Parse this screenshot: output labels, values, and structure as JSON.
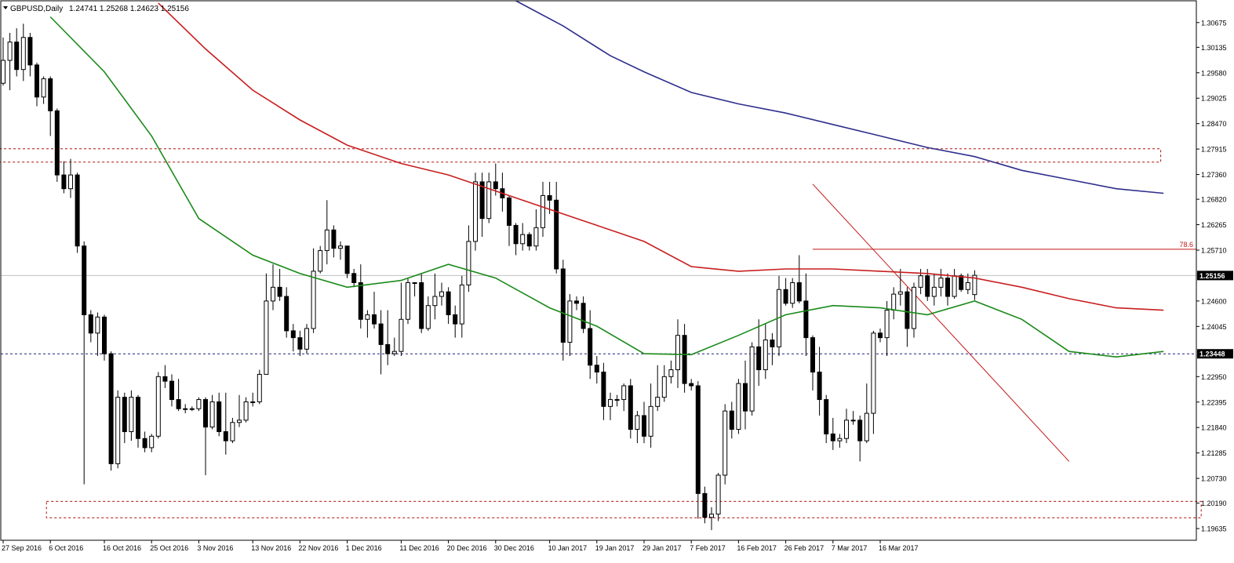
{
  "header": {
    "symbol_label": "GBPUSD,Daily",
    "ohlc_label": "1.24741 1.25268 1.24623 1.25156"
  },
  "colors": {
    "background": "#ffffff",
    "candle_outline": "#000000",
    "bull_body": "#ffffff",
    "bear_body": "#000000",
    "ma_fast": "#1a8a1a",
    "ma_mid": "#c81e1e",
    "ma_slow": "#2e2e8c",
    "zone": "#b01010",
    "support_line": "#1f1f7a",
    "fib_line": "#c01818",
    "current_price_line": "#c0c0c0",
    "price_tag_bg": "#000000",
    "price_tag_text": "#ffffff"
  },
  "chart_data": {
    "type": "candlestick",
    "symbol": "GBPUSD",
    "timeframe": "Daily",
    "ylim": [
      1.1938,
      1.3115
    ],
    "y_ticks": [
      "1.30675",
      "1.30135",
      "1.29580",
      "1.29025",
      "1.28470",
      "1.27915",
      "1.27360",
      "1.26820",
      "1.26265",
      "1.25710",
      "1.24600",
      "1.24045",
      "1.22950",
      "1.22395",
      "1.21840",
      "1.21285",
      "1.20730",
      "1.20190",
      "1.19635"
    ],
    "x_labels": [
      {
        "bar": 0,
        "label": "27 Sep 2016"
      },
      {
        "bar": 7,
        "label": "6 Oct 2016"
      },
      {
        "bar": 15,
        "label": "16 Oct 2016"
      },
      {
        "bar": 22,
        "label": "25 Oct 2016"
      },
      {
        "bar": 29,
        "label": "3 Nov 2016"
      },
      {
        "bar": 37,
        "label": "13 Nov 2016"
      },
      {
        "bar": 44,
        "label": "22 Nov 2016"
      },
      {
        "bar": 51,
        "label": "1 Dec 2016"
      },
      {
        "bar": 59,
        "label": "11 Dec 2016"
      },
      {
        "bar": 66,
        "label": "20 Dec 2016"
      },
      {
        "bar": 73,
        "label": "30 Dec 2016"
      },
      {
        "bar": 81,
        "label": "10 Jan 2017"
      },
      {
        "bar": 88,
        "label": "19 Jan 2017"
      },
      {
        "bar": 95,
        "label": "29 Jan 2017"
      },
      {
        "bar": 102,
        "label": "7 Feb 2017"
      },
      {
        "bar": 109,
        "label": "16 Feb 2017"
      },
      {
        "bar": 116,
        "label": "26 Feb 2017"
      },
      {
        "bar": 123,
        "label": "7 Mar 2017"
      },
      {
        "bar": 130,
        "label": "16 Mar 2017"
      }
    ],
    "candles": [
      [
        1.2935,
        1.2985,
        1.293,
        1.3035
      ],
      [
        1.2985,
        1.3025,
        1.292,
        1.3045
      ],
      [
        1.3025,
        1.2965,
        1.295,
        1.3055
      ],
      [
        1.2965,
        1.3035,
        1.294,
        1.3065
      ],
      [
        1.3035,
        1.2975,
        1.295,
        1.3045
      ],
      [
        1.2975,
        1.2905,
        1.2885,
        1.298
      ],
      [
        1.2905,
        1.2945,
        1.289,
        1.295
      ],
      [
        1.2945,
        1.2875,
        1.282,
        1.295
      ],
      [
        1.2875,
        1.2735,
        1.272,
        1.288
      ],
      [
        1.2735,
        1.2705,
        1.2695,
        1.2765
      ],
      [
        1.2705,
        1.2735,
        1.2685,
        1.277
      ],
      [
        1.2735,
        1.258,
        1.2565,
        1.274
      ],
      [
        1.258,
        1.243,
        1.206,
        1.259
      ],
      [
        1.243,
        1.239,
        1.237,
        1.244
      ],
      [
        1.239,
        1.2425,
        1.234,
        1.2435
      ],
      [
        1.2425,
        1.2345,
        1.233,
        1.243
      ],
      [
        1.2345,
        1.2105,
        1.209,
        1.235
      ],
      [
        1.2105,
        1.225,
        1.2095,
        1.2265
      ],
      [
        1.225,
        1.2175,
        1.215,
        1.226
      ],
      [
        1.2175,
        1.225,
        1.2155,
        1.2265
      ],
      [
        1.225,
        1.216,
        1.214,
        1.2255
      ],
      [
        1.216,
        1.214,
        1.213,
        1.2175
      ],
      [
        1.214,
        1.2165,
        1.213,
        1.217
      ],
      [
        1.2165,
        1.2295,
        1.216,
        1.2305
      ],
      [
        1.2295,
        1.2285,
        1.227,
        1.232
      ],
      [
        1.2285,
        1.2245,
        1.223,
        1.23
      ],
      [
        1.2245,
        1.2225,
        1.222,
        1.229
      ],
      [
        1.2225,
        1.2225,
        1.2215,
        1.2235
      ],
      [
        1.2225,
        1.2225,
        1.222,
        1.223
      ],
      [
        1.2225,
        1.2245,
        1.222,
        1.225
      ],
      [
        1.2245,
        1.2185,
        1.208,
        1.225
      ],
      [
        1.2185,
        1.224,
        1.218,
        1.2255
      ],
      [
        1.224,
        1.2175,
        1.2165,
        1.226
      ],
      [
        1.2175,
        1.2155,
        1.2125,
        1.226
      ],
      [
        1.2155,
        1.2195,
        1.215,
        1.2205
      ],
      [
        1.2195,
        1.22,
        1.2185,
        1.2255
      ],
      [
        1.22,
        1.224,
        1.2195,
        1.225
      ],
      [
        1.224,
        1.224,
        1.223,
        1.226
      ],
      [
        1.224,
        1.23,
        1.2235,
        1.231
      ],
      [
        1.23,
        1.246,
        1.23,
        1.252
      ],
      [
        1.246,
        1.249,
        1.244,
        1.254
      ],
      [
        1.249,
        1.247,
        1.246,
        1.253
      ],
      [
        1.247,
        1.2395,
        1.238,
        1.249
      ],
      [
        1.2395,
        1.238,
        1.235,
        1.241
      ],
      [
        1.238,
        1.2355,
        1.234,
        1.2395
      ],
      [
        1.2355,
        1.24,
        1.2345,
        1.241
      ],
      [
        1.24,
        1.2525,
        1.239,
        1.2575
      ],
      [
        1.2525,
        1.257,
        1.252,
        1.258
      ],
      [
        1.257,
        1.2615,
        1.254,
        1.268
      ],
      [
        1.2615,
        1.2575,
        1.2555,
        1.2625
      ],
      [
        1.2575,
        1.258,
        1.255,
        1.259
      ],
      [
        1.258,
        1.252,
        1.251,
        1.258
      ],
      [
        1.252,
        1.25,
        1.249,
        1.253
      ],
      [
        1.25,
        1.242,
        1.24,
        1.254
      ],
      [
        1.242,
        1.243,
        1.238,
        1.244
      ],
      [
        1.243,
        1.241,
        1.24,
        1.248
      ],
      [
        1.241,
        1.2365,
        1.23,
        1.244
      ],
      [
        1.2365,
        1.2345,
        1.232,
        1.244
      ],
      [
        1.2345,
        1.235,
        1.234,
        1.238
      ],
      [
        1.235,
        1.242,
        1.234,
        1.25
      ],
      [
        1.242,
        1.25,
        1.241,
        1.251
      ],
      [
        1.25,
        1.25,
        1.247,
        1.25
      ],
      [
        1.25,
        1.24,
        1.239,
        1.252
      ],
      [
        1.24,
        1.245,
        1.2395,
        1.247
      ],
      [
        1.245,
        1.247,
        1.242,
        1.252
      ],
      [
        1.247,
        1.248,
        1.245,
        1.25
      ],
      [
        1.248,
        1.243,
        1.241,
        1.249
      ],
      [
        1.243,
        1.241,
        1.238,
        1.245
      ],
      [
        1.241,
        1.2495,
        1.238,
        1.2515
      ],
      [
        1.2495,
        1.259,
        1.248,
        1.2625
      ],
      [
        1.259,
        1.272,
        1.257,
        1.274
      ],
      [
        1.272,
        1.264,
        1.26,
        1.274
      ],
      [
        1.264,
        1.272,
        1.263,
        1.274
      ],
      [
        1.272,
        1.2705,
        1.269,
        1.276
      ],
      [
        1.2705,
        1.2685,
        1.2655,
        1.274
      ],
      [
        1.2685,
        1.2625,
        1.258,
        1.269
      ],
      [
        1.2625,
        1.2585,
        1.256,
        1.263
      ],
      [
        1.2585,
        1.2605,
        1.257,
        1.263
      ],
      [
        1.2605,
        1.258,
        1.257,
        1.261
      ],
      [
        1.258,
        1.262,
        1.257,
        1.266
      ],
      [
        1.262,
        1.269,
        1.26,
        1.272
      ],
      [
        1.269,
        1.268,
        1.265,
        1.272
      ],
      [
        1.268,
        1.253,
        1.252,
        1.272
      ],
      [
        1.253,
        1.237,
        1.233,
        1.255
      ],
      [
        1.237,
        1.246,
        1.234,
        1.2475
      ],
      [
        1.246,
        1.2455,
        1.244,
        1.247
      ],
      [
        1.2455,
        1.24,
        1.239,
        1.247
      ],
      [
        1.24,
        1.232,
        1.229,
        1.244
      ],
      [
        1.232,
        1.2305,
        1.228,
        1.234
      ],
      [
        1.2305,
        1.223,
        1.22,
        1.2325
      ],
      [
        1.223,
        1.2245,
        1.22,
        1.226
      ],
      [
        1.2245,
        1.2245,
        1.223,
        1.2255
      ],
      [
        1.2245,
        1.2275,
        1.222,
        1.228
      ],
      [
        1.2275,
        1.218,
        1.216,
        1.229
      ],
      [
        1.218,
        1.221,
        1.215,
        1.222
      ],
      [
        1.221,
        1.2165,
        1.215,
        1.224
      ],
      [
        1.2165,
        1.223,
        1.214,
        1.228
      ],
      [
        1.223,
        1.225,
        1.222,
        1.232
      ],
      [
        1.225,
        1.2295,
        1.224,
        1.232
      ],
      [
        1.2295,
        1.231,
        1.228,
        1.233
      ],
      [
        1.231,
        1.2385,
        1.227,
        1.242
      ],
      [
        1.2385,
        1.228,
        1.226,
        1.241
      ],
      [
        1.228,
        1.2275,
        1.2265,
        1.229
      ],
      [
        1.2275,
        1.204,
        1.1985,
        1.2285
      ],
      [
        1.204,
        1.1988,
        1.1975,
        1.2055
      ],
      [
        1.1988,
        1.1995,
        1.196,
        1.201
      ],
      [
        1.1995,
        1.208,
        1.198,
        1.2085
      ],
      [
        1.208,
        1.222,
        1.206,
        1.2235
      ],
      [
        1.222,
        1.218,
        1.216,
        1.224
      ],
      [
        1.218,
        1.228,
        1.217,
        1.229
      ],
      [
        1.228,
        1.222,
        1.218,
        1.233
      ],
      [
        1.222,
        1.236,
        1.221,
        1.237
      ],
      [
        1.236,
        1.231,
        1.2275,
        1.242
      ],
      [
        1.231,
        1.2375,
        1.229,
        1.241
      ],
      [
        1.2375,
        1.236,
        1.232,
        1.239
      ],
      [
        1.236,
        1.2485,
        1.234,
        1.2515
      ],
      [
        1.2485,
        1.2455,
        1.245,
        1.251
      ],
      [
        1.2455,
        1.25,
        1.2445,
        1.251
      ],
      [
        1.25,
        1.246,
        1.2455,
        1.256
      ],
      [
        1.246,
        1.238,
        1.234,
        1.252
      ],
      [
        1.238,
        1.2305,
        1.2265,
        1.2385
      ],
      [
        1.2305,
        1.2245,
        1.221,
        1.236
      ],
      [
        1.2245,
        1.217,
        1.215,
        1.2255
      ],
      [
        1.217,
        1.2155,
        1.2135,
        1.2205
      ],
      [
        1.2155,
        1.216,
        1.214,
        1.217
      ],
      [
        1.216,
        1.22,
        1.215,
        1.2225
      ],
      [
        1.22,
        1.22,
        1.219,
        1.222
      ],
      [
        1.22,
        1.2155,
        1.211,
        1.221
      ],
      [
        1.2155,
        1.2215,
        1.215,
        1.228
      ],
      [
        1.2215,
        1.239,
        1.217,
        1.2395
      ],
      [
        1.239,
        1.238,
        1.237,
        1.24
      ],
      [
        1.238,
        1.244,
        1.234,
        1.246
      ],
      [
        1.244,
        1.2475,
        1.242,
        1.249
      ],
      [
        1.2475,
        1.248,
        1.245,
        1.253
      ],
      [
        1.248,
        1.24,
        1.236,
        1.249
      ],
      [
        1.24,
        1.249,
        1.238,
        1.25
      ],
      [
        1.249,
        1.2515,
        1.2475,
        1.253
      ],
      [
        1.2515,
        1.247,
        1.246,
        1.253
      ],
      [
        1.247,
        1.249,
        1.245,
        1.252
      ],
      [
        1.249,
        1.251,
        1.247,
        1.253
      ],
      [
        1.251,
        1.247,
        1.245,
        1.252
      ],
      [
        1.247,
        1.2515,
        1.2465,
        1.253
      ],
      [
        1.2515,
        1.2485,
        1.248,
        1.252
      ],
      [
        1.2485,
        1.25,
        1.2475,
        1.252
      ],
      [
        1.2474,
        1.2516,
        1.2462,
        1.2527
      ]
    ],
    "moving_averages": [
      {
        "color_key": "ma_fast",
        "points": [
          [
            7,
            1.308
          ],
          [
            15,
            1.296
          ],
          [
            22,
            1.282
          ],
          [
            29,
            1.264
          ],
          [
            37,
            1.256
          ],
          [
            44,
            1.252
          ],
          [
            51,
            1.249
          ],
          [
            59,
            1.2505
          ],
          [
            66,
            1.254
          ],
          [
            73,
            1.251
          ],
          [
            81,
            1.2445
          ],
          [
            88,
            1.2405
          ],
          [
            95,
            1.2345
          ],
          [
            102,
            1.2343
          ],
          [
            109,
            1.2385
          ],
          [
            116,
            1.243
          ],
          [
            123,
            1.245
          ],
          [
            130,
            1.2445
          ],
          [
            137,
            1.243
          ],
          [
            144,
            1.246
          ],
          [
            151,
            1.242
          ],
          [
            158,
            1.235
          ],
          [
            165,
            1.2338
          ],
          [
            172,
            1.235
          ]
        ]
      },
      {
        "color_key": "ma_mid",
        "points": [
          [
            23,
            1.311
          ],
          [
            30,
            1.301
          ],
          [
            37,
            1.292
          ],
          [
            44,
            1.2855
          ],
          [
            51,
            1.28
          ],
          [
            59,
            1.276
          ],
          [
            66,
            1.2735
          ],
          [
            73,
            1.27
          ],
          [
            81,
            1.266
          ],
          [
            88,
            1.2625
          ],
          [
            95,
            1.259
          ],
          [
            102,
            1.2535
          ],
          [
            109,
            1.2525
          ],
          [
            116,
            1.253
          ],
          [
            123,
            1.253
          ],
          [
            130,
            1.2525
          ],
          [
            137,
            1.252
          ],
          [
            144,
            1.251
          ],
          [
            151,
            1.249
          ],
          [
            158,
            1.2465
          ],
          [
            165,
            1.2445
          ],
          [
            172,
            1.244
          ]
        ]
      },
      {
        "color_key": "ma_slow",
        "points": [
          [
            76,
            1.3115
          ],
          [
            83,
            1.306
          ],
          [
            90,
            1.2995
          ],
          [
            95,
            1.296
          ],
          [
            102,
            1.2915
          ],
          [
            109,
            1.289
          ],
          [
            116,
            1.287
          ],
          [
            123,
            1.2845
          ],
          [
            130,
            1.282
          ],
          [
            137,
            1.2795
          ],
          [
            144,
            1.2775
          ],
          [
            151,
            1.2745
          ],
          [
            158,
            1.2725
          ],
          [
            165,
            1.2705
          ],
          [
            172,
            1.2695
          ]
        ]
      }
    ],
    "zones": [
      {
        "from_bar": 7,
        "to_bar": 177,
        "low": 1.1987,
        "high": 1.2023
      },
      {
        "from_bar": 0,
        "to_bar": 171,
        "low": 1.2763,
        "high": 1.2792
      }
    ],
    "support_level": 1.23448,
    "current_price": 1.25156,
    "fib_level": {
      "value": 1.2573,
      "label": "78.6",
      "from_bar": 120
    },
    "trendline": {
      "from_bar": 120,
      "from_price": 1.2715,
      "to_bar": 158,
      "to_price": 1.211
    },
    "price_tags": [
      {
        "value": 1.25156,
        "label": "1.25156"
      },
      {
        "value": 1.23448,
        "label": "1.23448"
      }
    ]
  }
}
